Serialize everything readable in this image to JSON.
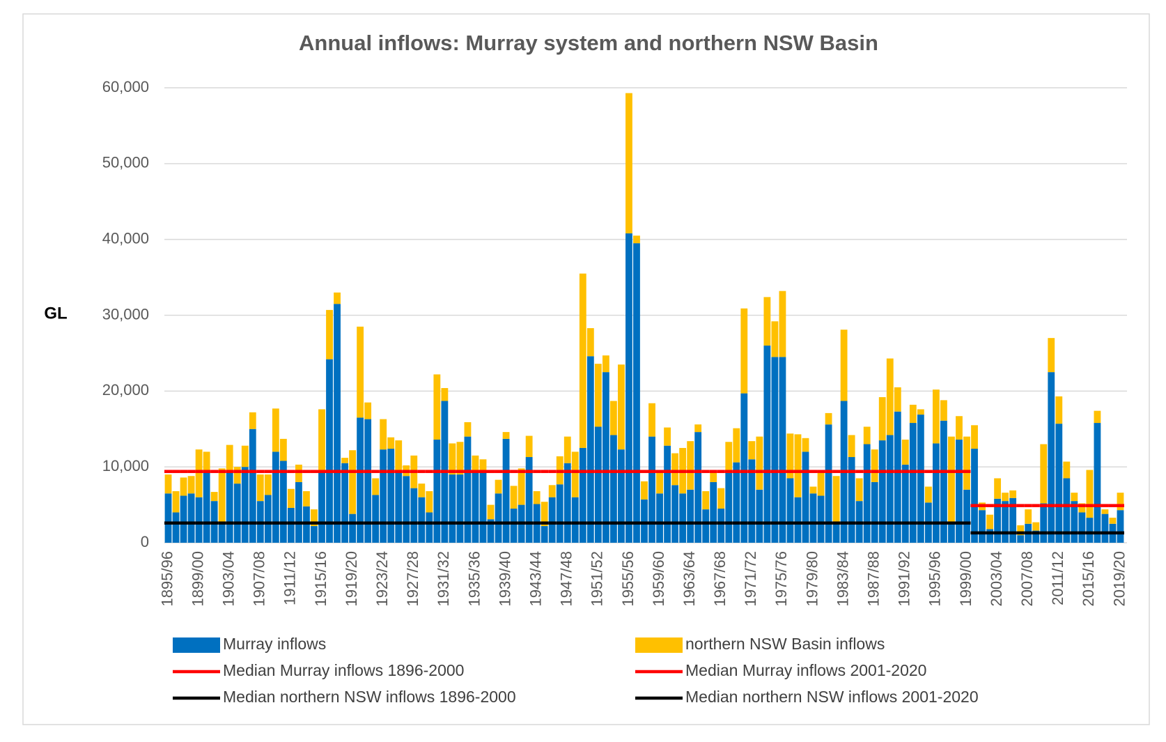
{
  "chart_data": {
    "type": "bar",
    "stacked": true,
    "title": "Annual inflows: Murray system and northern NSW Basin",
    "y_label": "GL",
    "ylim": [
      0,
      60000
    ],
    "yticks": [
      0,
      {
        "value": 10000,
        "label": "10,000"
      },
      {
        "value": 20000,
        "label": "20,000"
      },
      {
        "value": 30000,
        "label": "30,000"
      },
      {
        "value": 40000,
        "label": "40,000"
      },
      {
        "value": 50000,
        "label": "50,000"
      },
      {
        "value": 60000,
        "label": "60,000"
      }
    ],
    "grid": true,
    "legend": "bottom",
    "categories": [
      "1895/96",
      null,
      null,
      null,
      "1899/00",
      null,
      null,
      null,
      "1903/04",
      null,
      null,
      null,
      "1907/08",
      null,
      null,
      null,
      "1911/12",
      null,
      null,
      null,
      "1915/16",
      null,
      null,
      null,
      "1919/20",
      null,
      null,
      null,
      "1923/24",
      null,
      null,
      null,
      "1927/28",
      null,
      null,
      null,
      "1931/32",
      null,
      null,
      null,
      "1935/36",
      null,
      null,
      null,
      "1939/40",
      null,
      null,
      null,
      "1943/44",
      null,
      null,
      null,
      "1947/48",
      null,
      null,
      null,
      "1951/52",
      null,
      null,
      null,
      "1955/56",
      null,
      null,
      null,
      "1959/60",
      null,
      null,
      null,
      "1963/64",
      null,
      null,
      null,
      "1967/68",
      null,
      null,
      null,
      "1971/72",
      null,
      null,
      null,
      "1975/76",
      null,
      null,
      null,
      "1979/80",
      null,
      null,
      null,
      "1983/84",
      null,
      null,
      null,
      "1987/88",
      null,
      null,
      null,
      "1991/92",
      null,
      null,
      null,
      "1995/96",
      null,
      null,
      null,
      "1999/00",
      null,
      null,
      null,
      "2003/04",
      null,
      null,
      null,
      "2007/08",
      null,
      null,
      null,
      "2011/12",
      null,
      null,
      null,
      "2015/16",
      null,
      null,
      null,
      "2019/20"
    ],
    "series": [
      {
        "name": "Murray inflows",
        "type": "bar",
        "color": "#0070c0",
        "values": [
          6500,
          4000,
          6200,
          6500,
          6000,
          9500,
          5500,
          2500,
          9500,
          7800,
          10000,
          15000,
          5500,
          6300,
          12000,
          10800,
          4600,
          8000,
          4800,
          2200,
          9500,
          24200,
          31500,
          10500,
          3800,
          16500,
          16300,
          6300,
          12300,
          12400,
          9500,
          8800,
          7200,
          6000,
          4000,
          13600,
          18700,
          9000,
          9000,
          14000,
          9500,
          9500,
          3100,
          6500,
          13700,
          4500,
          5000,
          11300,
          5100,
          2200,
          6000,
          7700,
          10500,
          6000,
          12500,
          24600,
          15300,
          22500,
          14200,
          12300,
          40800,
          39500,
          5700,
          14000,
          6500,
          12800,
          7600,
          6500,
          7000,
          14600,
          4400,
          8000,
          4500,
          9200,
          10600,
          19700,
          11000,
          7000,
          26000,
          24500,
          24500,
          8500,
          6000,
          12000,
          6500,
          6200,
          15600,
          2500,
          18700,
          11300,
          5500,
          13000,
          8000,
          13500,
          14200,
          17300,
          10300,
          15800,
          16900,
          5300,
          13100,
          16100,
          2700,
          13600,
          7000,
          12400,
          4300,
          1800,
          5800,
          5500,
          5900,
          1000,
          2500,
          1600,
          5200,
          22500,
          15700,
          8500,
          5500,
          4000,
          3300,
          15800,
          3800,
          2500,
          4300
        ]
      },
      {
        "name": "northern NSW Basin inflows",
        "type": "bar",
        "color": "#ffc000",
        "values": [
          2500,
          2800,
          2400,
          2300,
          6300,
          2500,
          1200,
          7300,
          3400,
          2200,
          2800,
          2200,
          3500,
          2700,
          5700,
          2900,
          2500,
          2300,
          2000,
          2200,
          8100,
          6500,
          1500,
          700,
          8400,
          12000,
          2200,
          2200,
          4000,
          1500,
          4000,
          1400,
          4300,
          1800,
          2800,
          8600,
          1700,
          4100,
          4300,
          1900,
          2000,
          1500,
          1900,
          1800,
          900,
          3000,
          4800,
          2800,
          1700,
          3200,
          1600,
          3700,
          3500,
          6000,
          23000,
          3700,
          8300,
          2200,
          4500,
          11200,
          18500,
          1000,
          2400,
          4400,
          2800,
          2400,
          4200,
          6000,
          6400,
          1000,
          2400,
          1300,
          2700,
          4100,
          4500,
          11200,
          2400,
          7000,
          6400,
          4700,
          8700,
          5900,
          8300,
          1800,
          900,
          3000,
          1500,
          6300,
          9400,
          2900,
          3000,
          2300,
          4300,
          5700,
          10100,
          3200,
          3300,
          2400,
          700,
          2100,
          7100,
          2700,
          11300,
          3100,
          7000,
          3100,
          1000,
          1900,
          2700,
          1100,
          1000,
          1300,
          1900,
          1100,
          7800,
          4500,
          3600,
          2200,
          1100,
          1200,
          6300,
          1600,
          600,
          800,
          2300
        ]
      },
      {
        "name": "Median Murray inflows 1896-2000",
        "type": "line",
        "color": "#ff0000",
        "values": [
          9400,
          9400,
          9400,
          9400,
          9400,
          9400,
          9400,
          9400,
          9400,
          9400,
          9400,
          9400,
          9400,
          9400,
          9400,
          9400,
          9400,
          9400,
          9400,
          9400,
          9400,
          9400,
          9400,
          9400,
          9400,
          9400,
          9400,
          9400,
          9400,
          9400,
          9400,
          9400,
          9400,
          9400,
          9400,
          9400,
          9400,
          9400,
          9400,
          9400,
          9400,
          9400,
          9400,
          9400,
          9400,
          9400,
          9400,
          9400,
          9400,
          9400,
          9400,
          9400,
          9400,
          9400,
          9400,
          9400,
          9400,
          9400,
          9400,
          9400,
          9400,
          9400,
          9400,
          9400,
          9400,
          9400,
          9400,
          9400,
          9400,
          9400,
          9400,
          9400,
          9400,
          9400,
          9400,
          9400,
          9400,
          9400,
          9400,
          9400,
          9400,
          9400,
          9400,
          9400,
          9400,
          9400,
          9400,
          9400,
          9400,
          9400,
          9400,
          9400,
          9400,
          9400,
          9400,
          9400,
          9400,
          9400,
          9400,
          9400,
          9400,
          9400,
          9400,
          9400,
          9400,
          null,
          null,
          null,
          null,
          null,
          null,
          null,
          null,
          null,
          null,
          null,
          null,
          null,
          null,
          null,
          null,
          null,
          null,
          null,
          null
        ]
      },
      {
        "name": "Median Murray inflows 2001-2020",
        "type": "line",
        "color": "#ff0000",
        "values": [
          null,
          null,
          null,
          null,
          null,
          null,
          null,
          null,
          null,
          null,
          null,
          null,
          null,
          null,
          null,
          null,
          null,
          null,
          null,
          null,
          null,
          null,
          null,
          null,
          null,
          null,
          null,
          null,
          null,
          null,
          null,
          null,
          null,
          null,
          null,
          null,
          null,
          null,
          null,
          null,
          null,
          null,
          null,
          null,
          null,
          null,
          null,
          null,
          null,
          null,
          null,
          null,
          null,
          null,
          null,
          null,
          null,
          null,
          null,
          null,
          null,
          null,
          null,
          null,
          null,
          null,
          null,
          null,
          null,
          null,
          null,
          null,
          null,
          null,
          null,
          null,
          null,
          null,
          null,
          null,
          null,
          null,
          null,
          null,
          null,
          null,
          null,
          null,
          null,
          null,
          null,
          null,
          null,
          null,
          null,
          null,
          null,
          null,
          null,
          null,
          null,
          null,
          null,
          null,
          null,
          4900,
          4900,
          4900,
          4900,
          4900,
          4900,
          4900,
          4900,
          4900,
          4900,
          4900,
          4900,
          4900,
          4900,
          4900,
          4900,
          4900,
          4900,
          4900,
          4900
        ]
      },
      {
        "name": "Median northern NSW inflows 1896-2000",
        "type": "line",
        "color": "#000000",
        "values": [
          2600,
          2600,
          2600,
          2600,
          2600,
          2600,
          2600,
          2600,
          2600,
          2600,
          2600,
          2600,
          2600,
          2600,
          2600,
          2600,
          2600,
          2600,
          2600,
          2600,
          2600,
          2600,
          2600,
          2600,
          2600,
          2600,
          2600,
          2600,
          2600,
          2600,
          2600,
          2600,
          2600,
          2600,
          2600,
          2600,
          2600,
          2600,
          2600,
          2600,
          2600,
          2600,
          2600,
          2600,
          2600,
          2600,
          2600,
          2600,
          2600,
          2600,
          2600,
          2600,
          2600,
          2600,
          2600,
          2600,
          2600,
          2600,
          2600,
          2600,
          2600,
          2600,
          2600,
          2600,
          2600,
          2600,
          2600,
          2600,
          2600,
          2600,
          2600,
          2600,
          2600,
          2600,
          2600,
          2600,
          2600,
          2600,
          2600,
          2600,
          2600,
          2600,
          2600,
          2600,
          2600,
          2600,
          2600,
          2600,
          2600,
          2600,
          2600,
          2600,
          2600,
          2600,
          2600,
          2600,
          2600,
          2600,
          2600,
          2600,
          2600,
          2600,
          2600,
          2600,
          2600,
          null,
          null,
          null,
          null,
          null,
          null,
          null,
          null,
          null,
          null,
          null,
          null,
          null,
          null,
          null,
          null,
          null,
          null,
          null,
          null
        ]
      },
      {
        "name": "Median northern NSW inflows 2001-2020",
        "type": "line",
        "color": "#000000",
        "values": [
          null,
          null,
          null,
          null,
          null,
          null,
          null,
          null,
          null,
          null,
          null,
          null,
          null,
          null,
          null,
          null,
          null,
          null,
          null,
          null,
          null,
          null,
          null,
          null,
          null,
          null,
          null,
          null,
          null,
          null,
          null,
          null,
          null,
          null,
          null,
          null,
          null,
          null,
          null,
          null,
          null,
          null,
          null,
          null,
          null,
          null,
          null,
          null,
          null,
          null,
          null,
          null,
          null,
          null,
          null,
          null,
          null,
          null,
          null,
          null,
          null,
          null,
          null,
          null,
          null,
          null,
          null,
          null,
          null,
          null,
          null,
          null,
          null,
          null,
          null,
          null,
          null,
          null,
          null,
          null,
          null,
          null,
          null,
          null,
          null,
          null,
          null,
          null,
          null,
          null,
          null,
          null,
          null,
          null,
          null,
          null,
          null,
          null,
          null,
          null,
          null,
          null,
          null,
          null,
          null,
          1300,
          1300,
          1300,
          1300,
          1300,
          1300,
          1300,
          1300,
          1300,
          1300,
          1300,
          1300,
          1300,
          1300,
          1300,
          1300,
          1300,
          1300,
          1300,
          1300
        ]
      }
    ]
  }
}
